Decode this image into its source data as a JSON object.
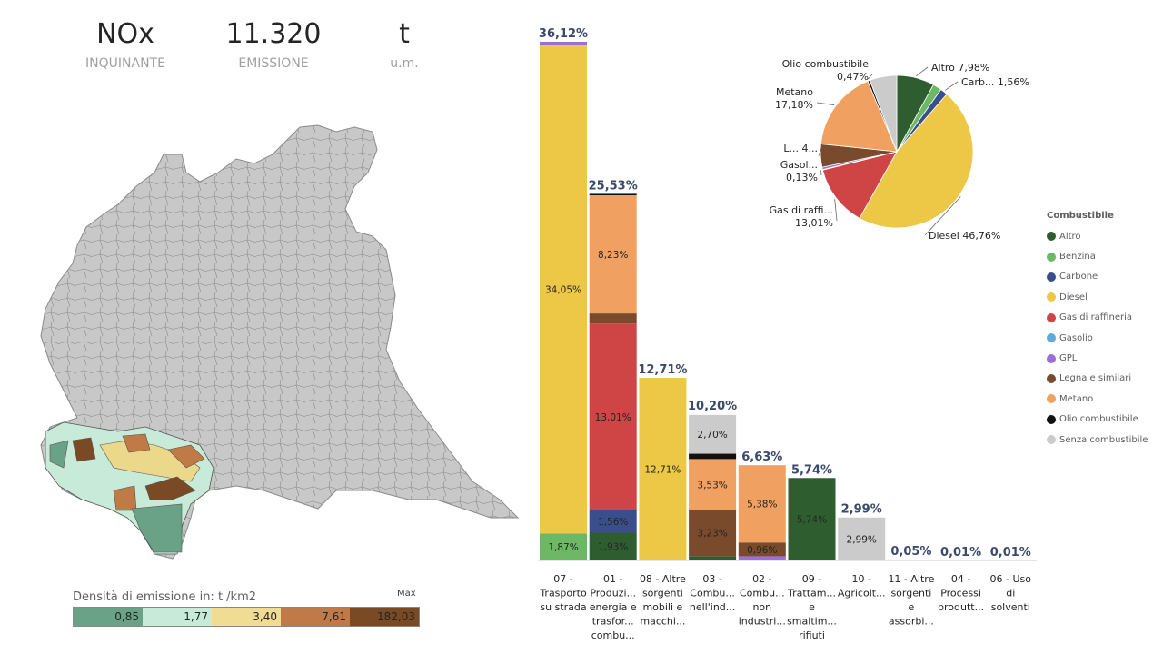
{
  "kpis": [
    {
      "value": "NOx",
      "label": "INQUINANTE"
    },
    {
      "value": "11.320",
      "label": "EMISSIONE"
    },
    {
      "value": "t",
      "label": "u.m."
    }
  ],
  "density_legend": {
    "title": "Densità di emissione in:  t /km2",
    "max_label": "Max",
    "segments": [
      {
        "value": "0,85",
        "color": "#6aa287"
      },
      {
        "value": "1,77",
        "color": "#c8ead9"
      },
      {
        "value": "3,40",
        "color": "#f0dc92"
      },
      {
        "value": "7,61",
        "color": "#c07a48"
      },
      {
        "value": "182,03",
        "color": "#7a4a25"
      }
    ]
  },
  "colors": {
    "Altro": "#2e5e30",
    "Benzina": "#6cb865",
    "Carbone": "#3b4e8c",
    "Diesel": "#ecc846",
    "Gas di raffineria": "#cf4444",
    "Gasolio": "#5fa8dd",
    "GPL": "#9c6ed8",
    "Legna e similari": "#7a4a2c",
    "Metano": "#f0a060",
    "Olio combustibile": "#111111",
    "Senza combustibile": "#cbcbcb"
  },
  "chart_data": [
    {
      "type": "bar",
      "stacked": true,
      "categories": [
        "07 - Trasporto su strada",
        "01 - Produzi... energia e trasfor... combu...",
        "08 - Altre sorgenti mobili e macchi...",
        "03 - Combu... nell'ind...",
        "02 - Combu... non industri...",
        "09 - Trattam... e smaltim... rifiuti",
        "10 - Agricolt...",
        "11 - Altre sorgenti e assorbi...",
        "04 - Processi produtt...",
        "06 - Uso di solventi"
      ],
      "category_lines": [
        [
          "07 -",
          "Trasporto",
          "su strada"
        ],
        [
          "01 -",
          "Produzi...",
          "energia e",
          "trasfor...",
          "combu..."
        ],
        [
          "08 - Altre",
          "sorgenti",
          "mobili e",
          "macchi..."
        ],
        [
          "03 -",
          "Combu...",
          "nell'ind..."
        ],
        [
          "02 -",
          "Combu...",
          "non",
          "industri..."
        ],
        [
          "09 -",
          "Trattam...",
          "e",
          "smaltim...",
          "rifiuti"
        ],
        [
          "10 -",
          "Agricolt..."
        ],
        [
          "11 - Altre",
          "sorgenti",
          "e",
          "assorbi..."
        ],
        [
          "04 -",
          "Processi",
          "produtt..."
        ],
        [
          "06 - Uso",
          "di",
          "solventi"
        ]
      ],
      "totals": [
        36.12,
        25.53,
        12.71,
        10.2,
        6.63,
        5.74,
        2.99,
        0.05,
        0.01,
        0.01
      ],
      "total_labels": [
        "36,12%",
        "25,53%",
        "12,71%",
        "10,20%",
        "6,63%",
        "5,74%",
        "2,99%",
        "0,05%",
        "0,01%",
        "0,01%"
      ],
      "stacks": [
        [
          {
            "series": "Benzina",
            "value": 1.87,
            "label": "1,87%"
          },
          {
            "series": "Diesel",
            "value": 34.05,
            "label": "34,05%"
          },
          {
            "series": "GPL",
            "value": 0.2,
            "label": ""
          }
        ],
        [
          {
            "series": "Altro",
            "value": 1.93,
            "label": "1,93%"
          },
          {
            "series": "Carbone",
            "value": 1.56,
            "label": "1,56%"
          },
          {
            "series": "Gas di raffineria",
            "value": 13.01,
            "label": "13,01%"
          },
          {
            "series": "Legna e similari",
            "value": 0.7,
            "label": ""
          },
          {
            "series": "Metano",
            "value": 8.23,
            "label": "8,23%"
          },
          {
            "series": "Olio combustibile",
            "value": 0.1,
            "label": ""
          }
        ],
        [
          {
            "series": "Diesel",
            "value": 12.71,
            "label": "12,71%"
          }
        ],
        [
          {
            "series": "Altro",
            "value": 0.3,
            "label": ""
          },
          {
            "series": "Legna e similari",
            "value": 3.23,
            "label": "3,23%"
          },
          {
            "series": "Metano",
            "value": 3.53,
            "label": "3,53%"
          },
          {
            "series": "Olio combustibile",
            "value": 0.37,
            "label": ""
          },
          {
            "series": "Senza combustibile",
            "value": 2.7,
            "label": "2,70%"
          }
        ],
        [
          {
            "series": "GPL",
            "value": 0.29,
            "label": ""
          },
          {
            "series": "Legna e similari",
            "value": 0.96,
            "label": "0,96%"
          },
          {
            "series": "Metano",
            "value": 5.38,
            "label": "5,38%"
          }
        ],
        [
          {
            "series": "Altro",
            "value": 5.74,
            "label": "5,74%"
          }
        ],
        [
          {
            "series": "Senza combustibile",
            "value": 2.99,
            "label": "2,99%"
          }
        ],
        [
          {
            "series": "Senza combustibile",
            "value": 0.05,
            "label": ""
          }
        ],
        [
          {
            "series": "Senza combustibile",
            "value": 0.01,
            "label": ""
          }
        ],
        [
          {
            "series": "Senza combustibile",
            "value": 0.01,
            "label": ""
          }
        ]
      ]
    },
    {
      "type": "pie",
      "slices": [
        {
          "name": "Altro",
          "value": 7.98,
          "label_lines": [
            "Altro 7,98%"
          ],
          "side": "right"
        },
        {
          "name": "Benzina",
          "value": 1.87,
          "label_lines": [],
          "side": "right"
        },
        {
          "name": "Carbone",
          "value": 1.56,
          "label_lines": [
            "Carb... 1,56%"
          ],
          "side": "right"
        },
        {
          "name": "Diesel",
          "value": 46.76,
          "label_lines": [
            "Diesel 46,76%"
          ],
          "side": "right"
        },
        {
          "name": "Gas di raffineria",
          "value": 13.01,
          "label_lines": [
            "Gas di raffi...",
            "13,01%"
          ],
          "side": "left"
        },
        {
          "name": "Gasolio",
          "value": 0.13,
          "label_lines": [
            "Gasol...",
            "0,13%"
          ],
          "side": "left"
        },
        {
          "name": "GPL",
          "value": 0.49,
          "label_lines": [],
          "side": "left"
        },
        {
          "name": "Legna e similari",
          "value": 4.89,
          "label_lines": [
            "L... 4..."
          ],
          "side": "left"
        },
        {
          "name": "Metano",
          "value": 17.18,
          "label_lines": [
            "Metano",
            "17,18%"
          ],
          "side": "left"
        },
        {
          "name": "Olio combustibile",
          "value": 0.47,
          "label_lines": [
            "Olio combustibile",
            "0,47%"
          ],
          "side": "left"
        },
        {
          "name": "Senza combustibile",
          "value": 5.75,
          "label_lines": [],
          "side": "left"
        }
      ]
    }
  ],
  "legend": {
    "title": "Combustibile",
    "items": [
      "Altro",
      "Benzina",
      "Carbone",
      "Diesel",
      "Gas di raffineria",
      "Gasolio",
      "GPL",
      "Legna e similari",
      "Metano",
      "Olio combustibile",
      "Senza combustibile"
    ]
  }
}
